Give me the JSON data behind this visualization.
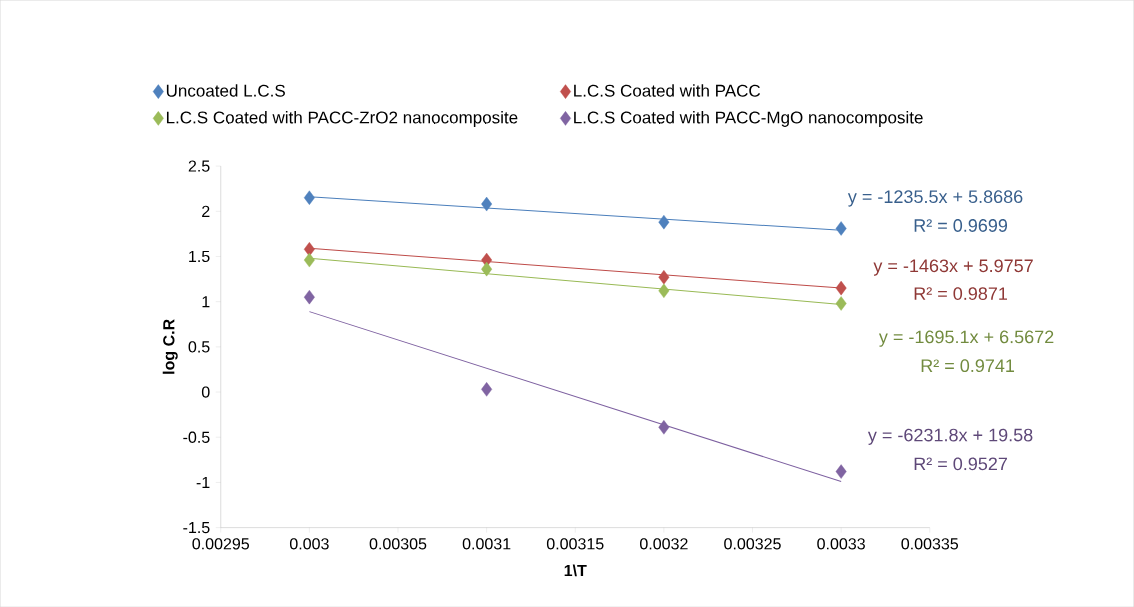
{
  "chart_data": {
    "type": "scatter",
    "xlabel": "1\\T",
    "ylabel": "log C.R",
    "xlim": [
      0.00295,
      0.00335
    ],
    "xticks": [
      0.00295,
      0.003,
      0.00305,
      0.0031,
      0.00315,
      0.0032,
      0.00325,
      0.0033,
      0.00335
    ],
    "ylim": [
      -1.5,
      2.5
    ],
    "yticks": [
      -1.5,
      -1,
      -0.5,
      0,
      0.5,
      1,
      1.5,
      2,
      2.5
    ],
    "grid": false,
    "legend": "top",
    "marker": "diamond",
    "series": [
      {
        "type": "line",
        "marker": "none",
        "color": "#4a7ebb",
        "x": [
          0.003,
          0.0033
        ],
        "values": [
          2.16,
          1.79
        ]
      },
      {
        "type": "line",
        "marker": "none",
        "color": "#be4b48",
        "x": [
          0.003,
          0.0033
        ],
        "values": [
          1.59,
          1.15
        ]
      },
      {
        "type": "line",
        "marker": "none",
        "color": "#98b954",
        "x": [
          0.003,
          0.0033
        ],
        "values": [
          1.48,
          0.97
        ]
      },
      {
        "type": "line",
        "marker": "none",
        "color": "#7d60a0",
        "x": [
          0.003,
          0.0033
        ],
        "values": [
          0.89,
          -0.99
        ]
      },
      {
        "name": "Uncoated L.C.S",
        "color": "#4f81bd",
        "x": [
          0.003,
          0.0031,
          0.0032,
          0.0033
        ],
        "values": [
          2.15,
          2.08,
          1.88,
          1.81
        ]
      },
      {
        "name": "L.C.S Coated with PACC",
        "color": "#c0504d",
        "x": [
          0.003,
          0.0031,
          0.0032,
          0.0033
        ],
        "values": [
          1.58,
          1.46,
          1.27,
          1.15
        ]
      },
      {
        "name": "L.C.S Coated with PACC-ZrO2 nanocomposite",
        "color": "#9bbb59",
        "x": [
          0.003,
          0.0031,
          0.0032,
          0.0033
        ],
        "values": [
          1.46,
          1.36,
          1.12,
          0.98
        ]
      },
      {
        "name": "L.C.S Coated with PACC-MgO nanocomposite",
        "color": "#8064a2",
        "x": [
          0.003,
          0.0031,
          0.0032,
          0.0033
        ],
        "values": [
          1.05,
          0.03,
          -0.39,
          -0.88
        ]
      }
    ],
    "annotations": [
      "y = -1235.5x + 5.8686",
      "R² = 0.9699",
      "y = -1463x + 5.9757",
      "R² = 0.9871",
      "y = -1695.1x + 6.5672",
      "R² = 0.9741",
      "y = -6231.8x + 19.58",
      "R² = 0.9527"
    ]
  }
}
